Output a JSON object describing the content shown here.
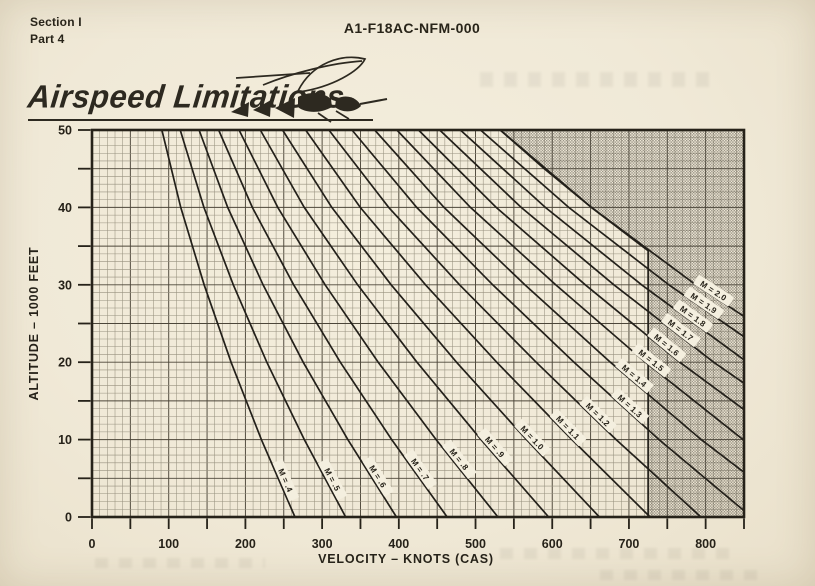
{
  "page": {
    "section": "Section I",
    "part": "Part 4",
    "doc_number": "A1-F18AC-NFM-000",
    "title": "Airspeed Limitations"
  },
  "colors": {
    "paper": "#f0e9d7",
    "ink": "#262219",
    "grid_minor": "#97917f",
    "grid_major": "#4c4639",
    "mach_line": "#23201a",
    "label_bg": "#f4efdf",
    "shade_dot": "#45413a"
  },
  "chart_data": {
    "type": "line",
    "title": "Airspeed Limitations",
    "xlabel": "VELOCITY – KNOTS (CAS)",
    "ylabel": "ALTITUDE – 1000 FEET",
    "xlim": [
      0,
      850
    ],
    "ylim": [
      0,
      50
    ],
    "x_tick_step": 50,
    "x_label_step": 100,
    "x_grid_minor": 10,
    "x_grid_major": 50,
    "y_tick_step": 5,
    "y_label_step": 10,
    "y_grid_minor": 1,
    "y_grid_major": 5,
    "grid": true,
    "legend": "none",
    "altitudes_kft": [
      0,
      10,
      20,
      30,
      40,
      50
    ],
    "series": [
      {
        "label": "M = .4",
        "mach": 0.4,
        "cas_knots": [
          264.6,
          220.8,
          181.3,
          146.2,
          115.7,
          91.1
        ],
        "label_alt": 4.5
      },
      {
        "label": "M = .5",
        "mach": 0.5,
        "cas_knots": [
          330.7,
          276.8,
          227.9,
          184.2,
          145.9,
          115.0
        ],
        "label_alt": 4.6
      },
      {
        "label": "M = .6",
        "mach": 0.6,
        "cas_knots": [
          396.9,
          333.5,
          275.3,
          223.0,
          176.9,
          139.6
        ],
        "label_alt": 5.0
      },
      {
        "label": "M = .7",
        "mach": 0.7,
        "cas_knots": [
          463.0,
          390.7,
          323.7,
          262.9,
          209.0,
          165.1
        ],
        "label_alt": 5.9
      },
      {
        "label": "M = .8",
        "mach": 0.8,
        "cas_knots": [
          529.2,
          448.6,
          373.1,
          303.9,
          242.2,
          191.7
        ],
        "label_alt": 7.2
      },
      {
        "label": "M = .9",
        "mach": 0.9,
        "cas_knots": [
          595.3,
          507.1,
          423.6,
          346.3,
          276.7,
          219.4
        ],
        "label_alt": 8.8
      },
      {
        "label": "M = 1.0",
        "mach": 1.0,
        "cas_knots": [
          661.5,
          566.4,
          475.2,
          390.0,
          312.6,
          248.4
        ],
        "label_alt": 10.0
      },
      {
        "label": "M = 1.1",
        "mach": 1.1,
        "cas_knots": [
          727.6,
          625.7,
          527.6,
          434.8,
          349.7,
          278.5
        ],
        "label_alt": 11.3
      },
      {
        "label": "M = 1.2",
        "mach": 1.2,
        "cas_knots": [
          793.8,
          683.3,
          579.0,
          479.2,
          386.8,
          308.8
        ],
        "label_alt": 13.0
      },
      {
        "label": "M = 1.3",
        "mach": 1.3,
        "cas_knots": [
          859.9,
          739.2,
          628.4,
          522.4,
          423.3,
          338.9
        ],
        "label_alt": 14.1
      },
      {
        "label": "M = 1.4",
        "mach": 1.4,
        "cas_knots": [
          926.1,
          794.2,
          675.8,
          564.3,
          458.9,
          368.5
        ],
        "label_alt": 18.0
      },
      {
        "label": "M = 1.5",
        "mach": 1.5,
        "cas_knots": [
          992.2,
          848.7,
          721.5,
          604.5,
          493.4,
          397.4
        ],
        "label_alt": 20.0
      },
      {
        "label": "M = 1.6",
        "mach": 1.6,
        "cas_knots": [
          1058.4,
          903.0,
          766.2,
          643.1,
          526.9,
          425.6
        ],
        "label_alt": 22.0
      },
      {
        "label": "M = 1.7",
        "mach": 1.7,
        "cas_knots": [
          1124.5,
          956.0,
          810.4,
          680.4,
          559.5,
          453.2
        ],
        "label_alt": 23.9
      },
      {
        "label": "M = 1.8",
        "mach": 1.8,
        "cas_knots": [
          1190.6,
          1010.8,
          854.3,
          716.5,
          591.0,
          480.2
        ],
        "label_alt": 25.7
      },
      {
        "label": "M = 1.9",
        "mach": 1.9,
        "cas_knots": [
          1256.8,
          1065.2,
          898.0,
          752.0,
          621.5,
          506.5
        ],
        "label_alt": 27.4
      },
      {
        "label": "M = 2.0",
        "mach": 2.0,
        "cas_knots": [
          1322.9,
          1119.5,
          941.6,
          787.1,
          651.1,
          532.1
        ],
        "label_alt": 29.0
      }
    ],
    "limit_region": {
      "vertical_cas": 725,
      "junction_alt": 34.4,
      "upper_boundary_cas_alt": [
        [
          717.0,
          35
        ],
        [
          651.1,
          40
        ],
        [
          589.6,
          45
        ],
        [
          532.1,
          50
        ]
      ]
    }
  }
}
